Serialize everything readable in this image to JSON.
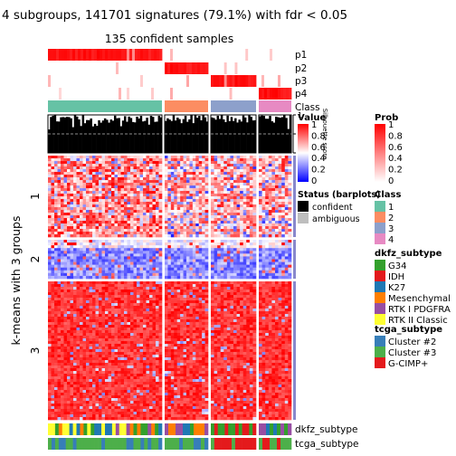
{
  "title": "4 subgroups, 141701 signatures (79.1%) with fdr < 0.05",
  "subtitle": "135 confident samples",
  "row_title": "k-means with 3 groups",
  "colors": {
    "class_1": "#66C2A5",
    "class_2": "#FC8D62",
    "class_3": "#8DA0CB",
    "class_4": "#E78AC3",
    "heat_high": "#FF0000",
    "heat_mid": "#FFFFFF",
    "heat_low": "#0000FF",
    "prob_high": "#FF0000",
    "dkfz_G34": "#33A02C",
    "dkfz_IDH": "#E31A1C",
    "dkfz_K27": "#1F78B4",
    "dkfz_Mesenchymal": "#FF7F00",
    "dkfz_RTK_I_PDGFRA": "#984EA3",
    "dkfz_RTK_II_Classic": "#FFFF33",
    "tcga_cluster2": "#377EB8",
    "tcga_cluster3": "#4DAF4A",
    "tcga_gcimp": "#E41A1C"
  },
  "chart_data": {
    "type": "heatmap",
    "title": "4 subgroups, 141701 signatures (79.1%) with fdr < 0.05",
    "subtitle": "135 confident samples",
    "row_title": "k-means with 3 groups",
    "column_groups": [
      {
        "class": "1",
        "fraction": 0.455
      },
      {
        "class": "2",
        "fraction": 0.175
      },
      {
        "class": "3",
        "fraction": 0.18
      },
      {
        "class": "4",
        "fraction": 0.13
      }
    ],
    "row_groups": [
      {
        "label": "1",
        "fraction": 0.315,
        "pattern": "mixed high"
      },
      {
        "label": "2",
        "fraction": 0.15,
        "pattern": "low"
      },
      {
        "label": "3",
        "fraction": 0.535,
        "pattern": "high"
      }
    ],
    "top_annotations": [
      "p1",
      "p2",
      "p3",
      "p4",
      "Class"
    ],
    "silhouette_label": "Silhouette score",
    "silhouette_ticks": [
      "1",
      "0.5",
      "0"
    ],
    "bottom_annotations": [
      "dkfz_subtype",
      "tcga_subtype"
    ],
    "value_legend": {
      "title": "Value",
      "ticks": [
        "1",
        "0.8",
        "0.6",
        "0.4",
        "0.2",
        "0"
      ]
    },
    "prob_legend": {
      "title": "Prob",
      "ticks": [
        "1",
        "0.8",
        "0.6",
        "0.4",
        "0.2",
        "0"
      ]
    },
    "status_legend": {
      "title": "Status (barplots)",
      "items": [
        "confident",
        "ambiguous"
      ]
    },
    "class_legend": {
      "title": "Class",
      "items": [
        "1",
        "2",
        "3",
        "4"
      ]
    },
    "dkfz_legend": {
      "title": "dkfz_subtype",
      "items": [
        "G34",
        "IDH",
        "K27",
        "Mesenchymal",
        "RTK I PDGFRA",
        "RTK II Classic"
      ]
    },
    "tcga_legend": {
      "title": "tcga_subtype",
      "items": [
        "Cluster #2",
        "Cluster #3",
        "G-CIMP+"
      ]
    }
  }
}
